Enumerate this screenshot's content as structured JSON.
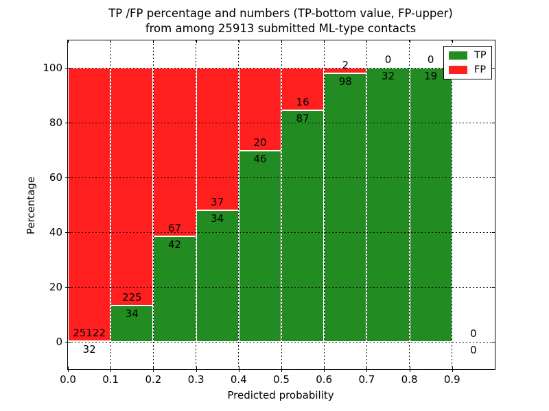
{
  "title": {
    "line1": "TP /FP percentage and numbers (TP-bottom value, FP-upper)",
    "line2": "from among 25913 submitted ML-type contacts"
  },
  "axes": {
    "xlabel": "Predicted probability",
    "ylabel": "Percentage"
  },
  "legend": {
    "entries": [
      {
        "label": "TP",
        "color": "#228b22"
      },
      {
        "label": "FP",
        "color": "#ff1f1f"
      }
    ]
  },
  "colors": {
    "tp_green": "#228b22",
    "fp_red": "#ff1f1f",
    "bar_edge": "#ffffff",
    "grid": "#000000",
    "background": "#ffffff"
  },
  "chart_data": {
    "type": "bar",
    "stacked": true,
    "normalized": "each 0.1 probability bin scaled to 100 percent",
    "title": "TP /FP percentage and numbers (TP-bottom value, FP-upper) from among 25913 submitted ML-type contacts",
    "total_contacts": 25913,
    "xlabel": "Predicted probability",
    "ylabel": "Percentage",
    "xlim": [
      0.0,
      1.0
    ],
    "ylim": [
      -10,
      110
    ],
    "grid": "dotted",
    "legend_position": "upper right",
    "bin_width": 0.1,
    "bin_starts": [
      0.0,
      0.1,
      0.2,
      0.3,
      0.4,
      0.5,
      0.6,
      0.7,
      0.8,
      0.9
    ],
    "xtick_values": [
      0.0,
      0.1,
      0.2,
      0.3,
      0.4,
      0.5,
      0.6,
      0.7,
      0.8,
      0.9
    ],
    "xtick_labels": [
      "0.0",
      "0.1",
      "0.2",
      "0.3",
      "0.4",
      "0.5",
      "0.6",
      "0.7",
      "0.8",
      "0.9"
    ],
    "ytick_values": [
      0,
      20,
      40,
      60,
      80,
      100
    ],
    "ytick_labels": [
      "0",
      "20",
      "40",
      "60",
      "80",
      "100"
    ],
    "series": [
      {
        "name": "TP",
        "color": "#228b22",
        "counts": [
          32,
          34,
          42,
          34,
          46,
          87,
          98,
          32,
          19,
          0
        ]
      },
      {
        "name": "FP",
        "color": "#ff1f1f",
        "counts": [
          25122,
          225,
          67,
          37,
          20,
          16,
          2,
          0,
          0,
          0
        ]
      }
    ],
    "tp_percent_per_bin": [
      0.13,
      13.13,
      38.53,
      47.89,
      69.7,
      84.47,
      98.0,
      100.0,
      100.0,
      0
    ]
  }
}
